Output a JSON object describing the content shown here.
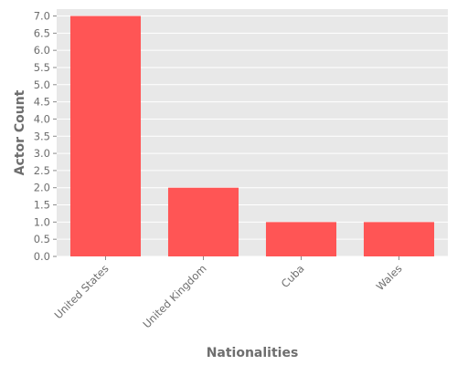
{
  "chart_data": {
    "type": "bar",
    "categories": [
      "United States",
      "United Kingdom",
      "Cuba",
      "Wales"
    ],
    "values": [
      7,
      2,
      1,
      1
    ],
    "xlabel": "Nationalities",
    "ylabel": "Actor Count",
    "ylim": [
      0,
      7.2
    ],
    "yticks": [
      0.0,
      0.5,
      1.0,
      1.5,
      2.0,
      2.5,
      3.0,
      3.5,
      4.0,
      4.5,
      5.0,
      5.5,
      6.0,
      6.5,
      7.0
    ],
    "ytick_labels": [
      "0.0",
      "0.5",
      "1.0",
      "1.5",
      "2.0",
      "2.5",
      "3.0",
      "3.5",
      "4.0",
      "4.5",
      "5.0",
      "5.5",
      "6.0",
      "6.5",
      "7.0"
    ],
    "grid": true,
    "bar_color": "#ff5555",
    "background_color": "#e8e8e8",
    "grid_color": "#ffffff"
  }
}
